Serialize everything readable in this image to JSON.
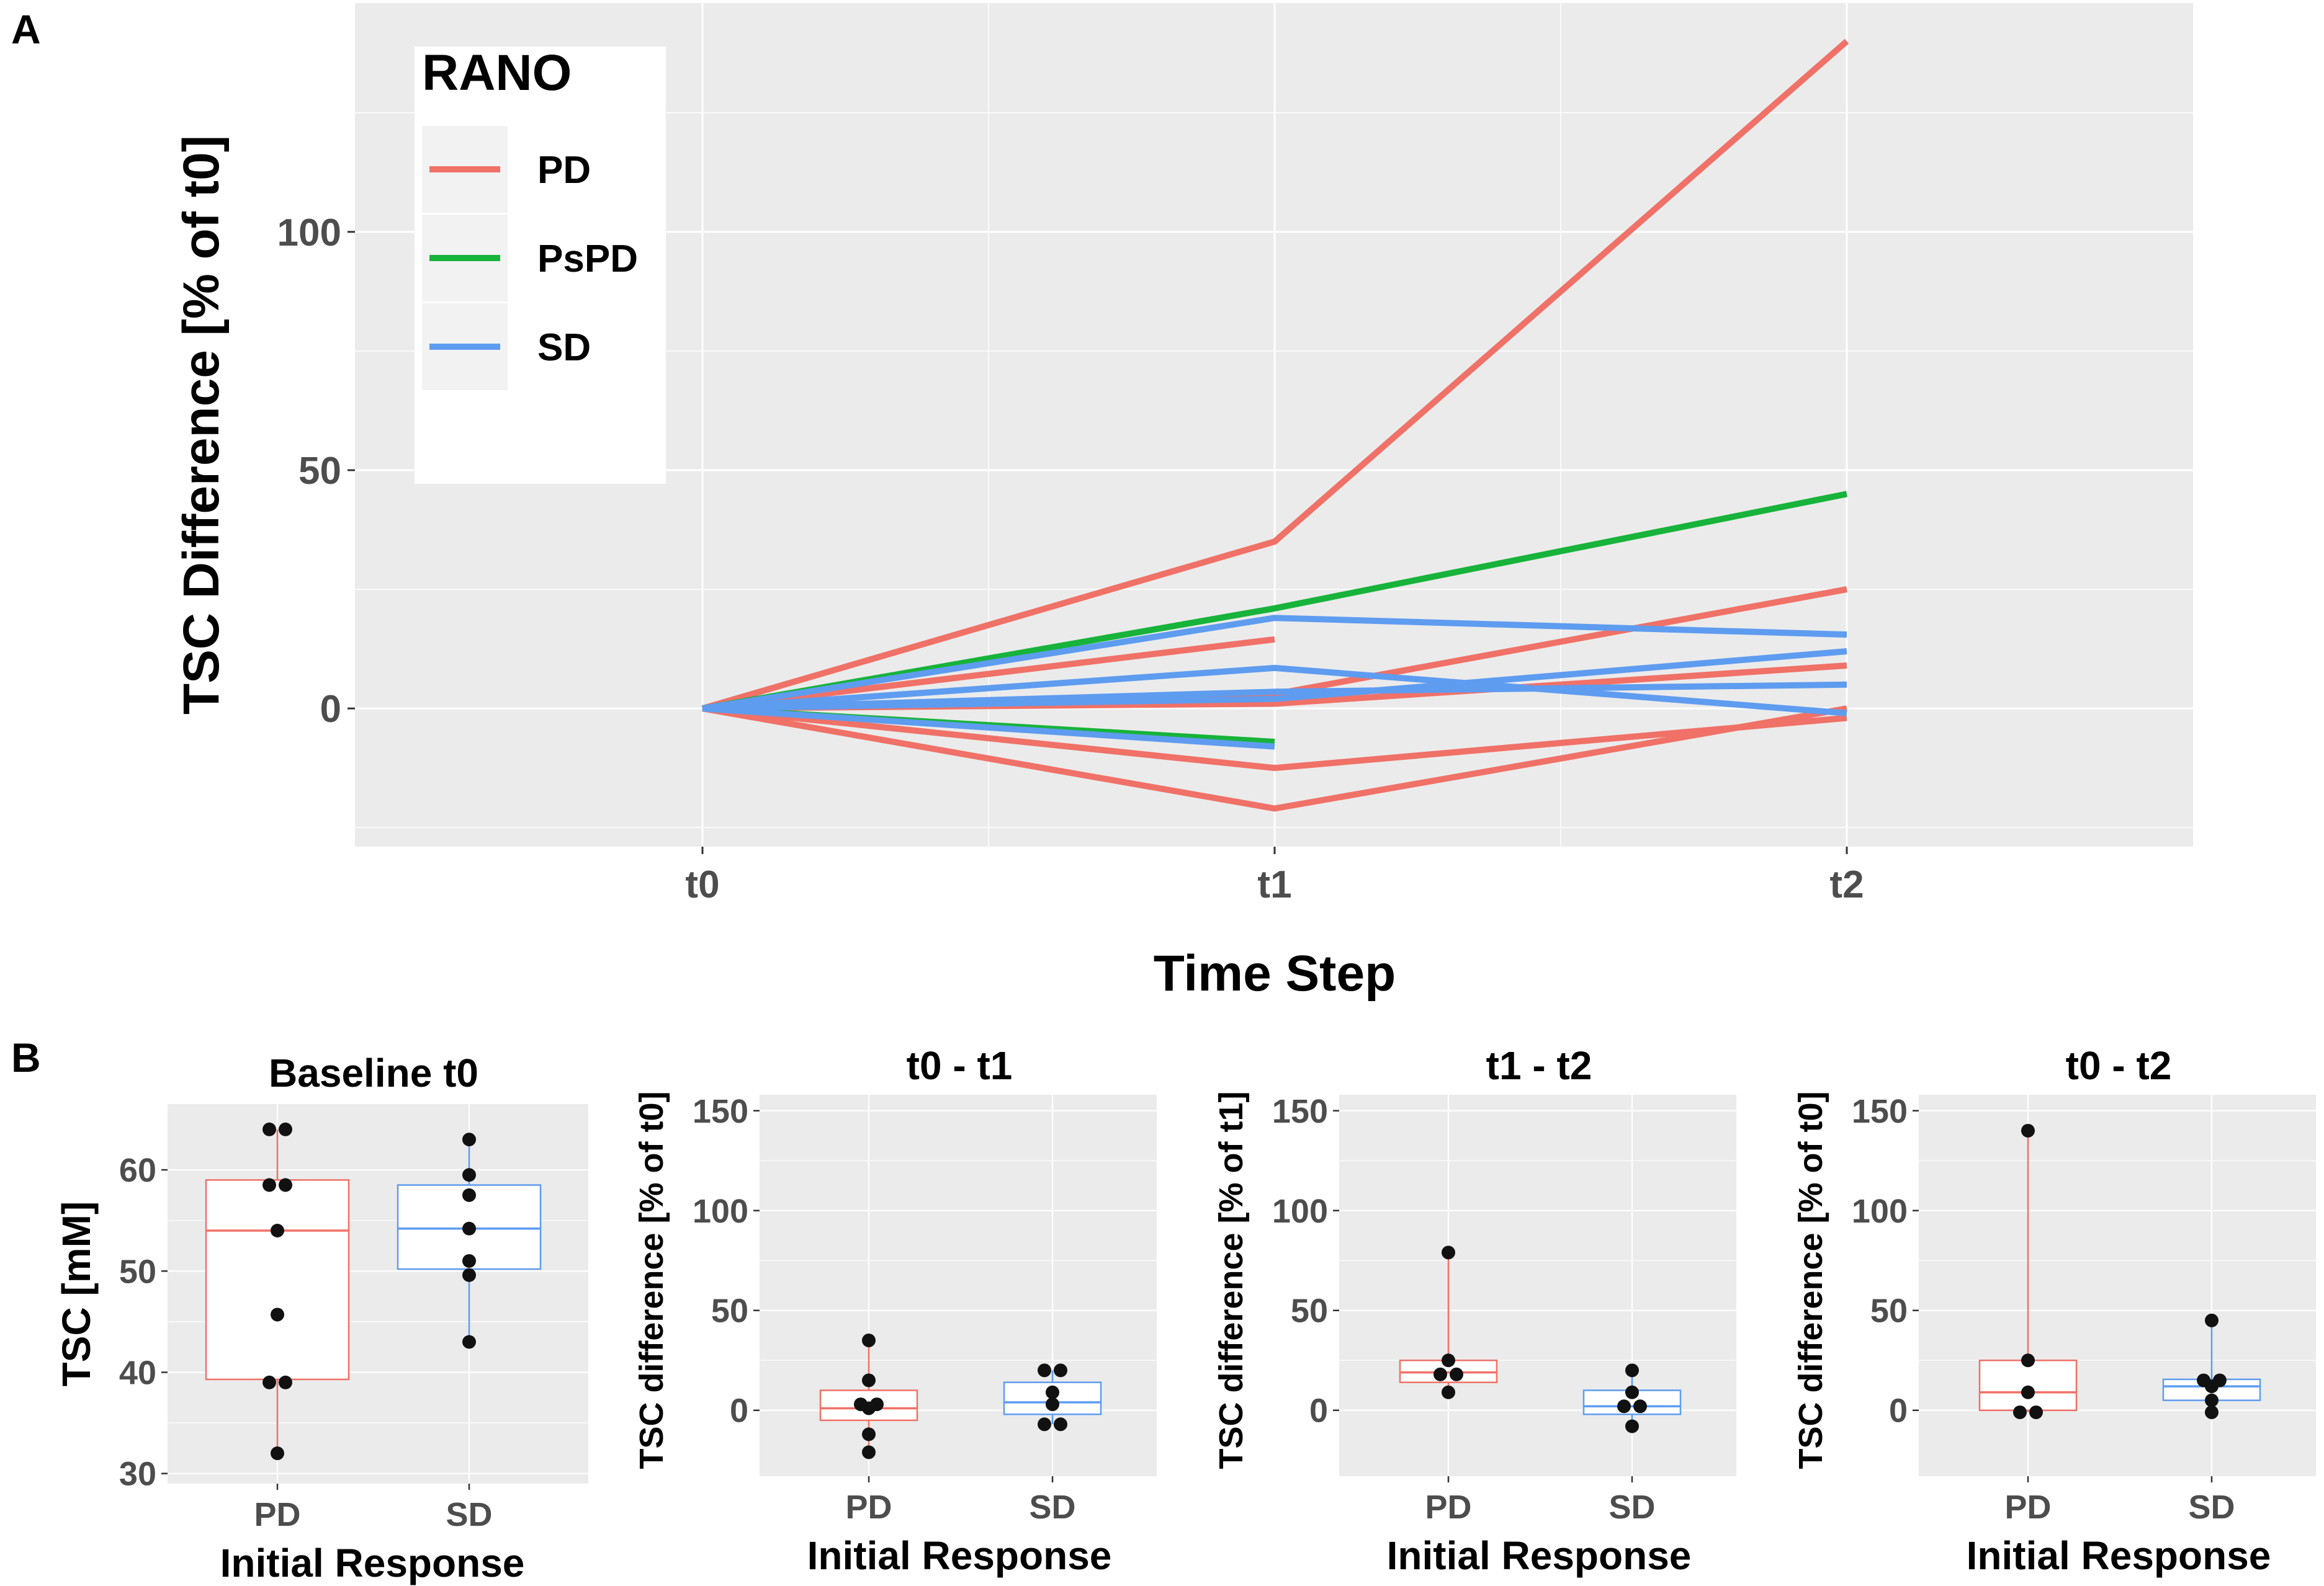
{
  "colors": {
    "PD": "#F07167",
    "PsPD": "#17B33A",
    "SD": "#5E9CF0",
    "panel_bg": "#EBEBEB",
    "grid": "#FFFFFF",
    "axis_text": "#4D4D4D",
    "point": "#111111"
  },
  "panel_labels": {
    "a": "A",
    "b": "B"
  },
  "chart_data": [
    {
      "id": "A",
      "type": "line",
      "title": "",
      "xlabel": "Time Step",
      "ylabel": "TSC Difference [% of t0]",
      "categories": [
        "t0",
        "t1",
        "t2"
      ],
      "ylim": [
        -29,
        148
      ],
      "yticks": [
        0,
        50,
        100
      ],
      "legend": {
        "title": "RANO",
        "placement": "top-left",
        "entries": [
          "PD",
          "PsPD",
          "SD"
        ]
      },
      "series": [
        {
          "group": "PD",
          "values": [
            0,
            35,
            140
          ]
        },
        {
          "group": "PD",
          "values": [
            0,
            3,
            25
          ]
        },
        {
          "group": "PD",
          "values": [
            0,
            1,
            9
          ]
        },
        {
          "group": "PD",
          "values": [
            0,
            -12.5,
            -2
          ]
        },
        {
          "group": "PD",
          "values": [
            0,
            -21,
            0
          ]
        },
        {
          "group": "PD",
          "values": [
            0,
            14.5,
            null
          ]
        },
        {
          "group": "PsPD",
          "values": [
            0,
            21,
            45
          ]
        },
        {
          "group": "PsPD",
          "values": [
            0,
            -7,
            null
          ]
        },
        {
          "group": "SD",
          "values": [
            0,
            19,
            15.5
          ]
        },
        {
          "group": "SD",
          "values": [
            0,
            2,
            12
          ]
        },
        {
          "group": "SD",
          "values": [
            0,
            3.5,
            5
          ]
        },
        {
          "group": "SD",
          "values": [
            0,
            8.5,
            -1
          ]
        },
        {
          "group": "SD",
          "values": [
            0,
            -8,
            null
          ]
        }
      ]
    },
    {
      "id": "B1",
      "type": "box",
      "title": "Baseline t0",
      "xlabel": "Initial Response",
      "ylabel": "TSC [mM]",
      "categories": [
        "PD",
        "SD"
      ],
      "ylim": [
        29,
        66.5
      ],
      "yticks": [
        30,
        40,
        50,
        60
      ],
      "boxes": [
        {
          "group": "PD",
          "min": 32,
          "q1": 39.3,
          "median": 54,
          "q3": 59,
          "max": 64,
          "points": [
            64,
            64,
            58.5,
            58.5,
            54,
            45.7,
            39,
            39,
            32
          ]
        },
        {
          "group": "SD",
          "min": 43,
          "q1": 50.2,
          "median": 54.2,
          "q3": 58.5,
          "max": 63,
          "points": [
            63,
            59.5,
            57.5,
            54.2,
            51,
            49.6,
            43
          ]
        }
      ]
    },
    {
      "id": "B2",
      "type": "box",
      "title": "t0 - t1",
      "xlabel": "Initial Response",
      "ylabel": "TSC difference [% of t0]",
      "categories": [
        "PD",
        "SD"
      ],
      "ylim": [
        -33,
        158
      ],
      "yticks": [
        0,
        50,
        100,
        150
      ],
      "boxes": [
        {
          "group": "PD",
          "min": -21,
          "q1": -5,
          "median": 1,
          "q3": 10,
          "max": 35,
          "points": [
            35,
            15,
            3,
            3,
            1,
            -12,
            -21
          ]
        },
        {
          "group": "SD",
          "min": -7,
          "q1": -2,
          "median": 4,
          "q3": 14,
          "max": 20,
          "points": [
            20,
            20,
            9,
            3,
            -7,
            -7
          ]
        }
      ]
    },
    {
      "id": "B3",
      "type": "box",
      "title": "t1 - t2",
      "xlabel": "Initial Response",
      "ylabel": "TSC difference [% of t1]",
      "categories": [
        "PD",
        "SD"
      ],
      "ylim": [
        -33,
        158
      ],
      "yticks": [
        0,
        50,
        100,
        150
      ],
      "boxes": [
        {
          "group": "PD",
          "min": 8,
          "q1": 14,
          "median": 19,
          "q3": 25,
          "max": 79,
          "points": [
            79,
            25,
            18,
            18,
            9
          ]
        },
        {
          "group": "SD",
          "min": -8,
          "q1": -2,
          "median": 2,
          "q3": 10,
          "max": 20,
          "points": [
            20,
            9,
            2,
            2,
            -8
          ]
        }
      ]
    },
    {
      "id": "B4",
      "type": "box",
      "title": "t0 - t2",
      "xlabel": "Initial Response",
      "ylabel": "TSC difference [% of t0]",
      "categories": [
        "PD",
        "SD"
      ],
      "ylim": [
        -33,
        158
      ],
      "yticks": [
        0,
        50,
        100,
        150
      ],
      "boxes": [
        {
          "group": "PD",
          "min": -1,
          "q1": 0,
          "median": 9,
          "q3": 25,
          "max": 140,
          "points": [
            140,
            25,
            9,
            -1,
            -1
          ]
        },
        {
          "group": "SD",
          "min": -1,
          "q1": 5,
          "median": 12,
          "q3": 15.5,
          "max": 45,
          "points": [
            45,
            15,
            15,
            12,
            5,
            -1
          ]
        }
      ]
    }
  ]
}
